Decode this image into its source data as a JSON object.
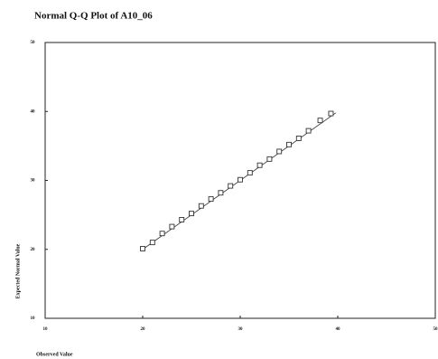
{
  "chart_data": {
    "type": "scatter",
    "title": "Normal Q-Q Plot of A10_06",
    "x_label": "Observed Value",
    "y_label": "Expected Normal Value",
    "x": [
      20,
      21,
      22,
      23,
      24,
      25,
      26,
      27,
      28,
      29,
      30,
      31,
      32,
      33,
      34,
      35,
      36,
      37,
      38.2,
      39.3
    ],
    "values": [
      20.1,
      21.0,
      22.3,
      23.3,
      24.3,
      25.2,
      26.3,
      27.3,
      28.2,
      29.2,
      30.1,
      31.1,
      32.2,
      33.1,
      34.2,
      35.2,
      36.1,
      37.2,
      38.7,
      39.7
    ],
    "reference_line": {
      "x": [
        20,
        39.8
      ],
      "y": [
        20,
        39.8
      ]
    },
    "color": "#333333",
    "xlim": [
      10,
      50
    ],
    "xticks": [
      10,
      20,
      30,
      40,
      50
    ],
    "ylim": [
      10,
      50
    ],
    "yticks": [
      10,
      20,
      30,
      40,
      50
    ]
  }
}
